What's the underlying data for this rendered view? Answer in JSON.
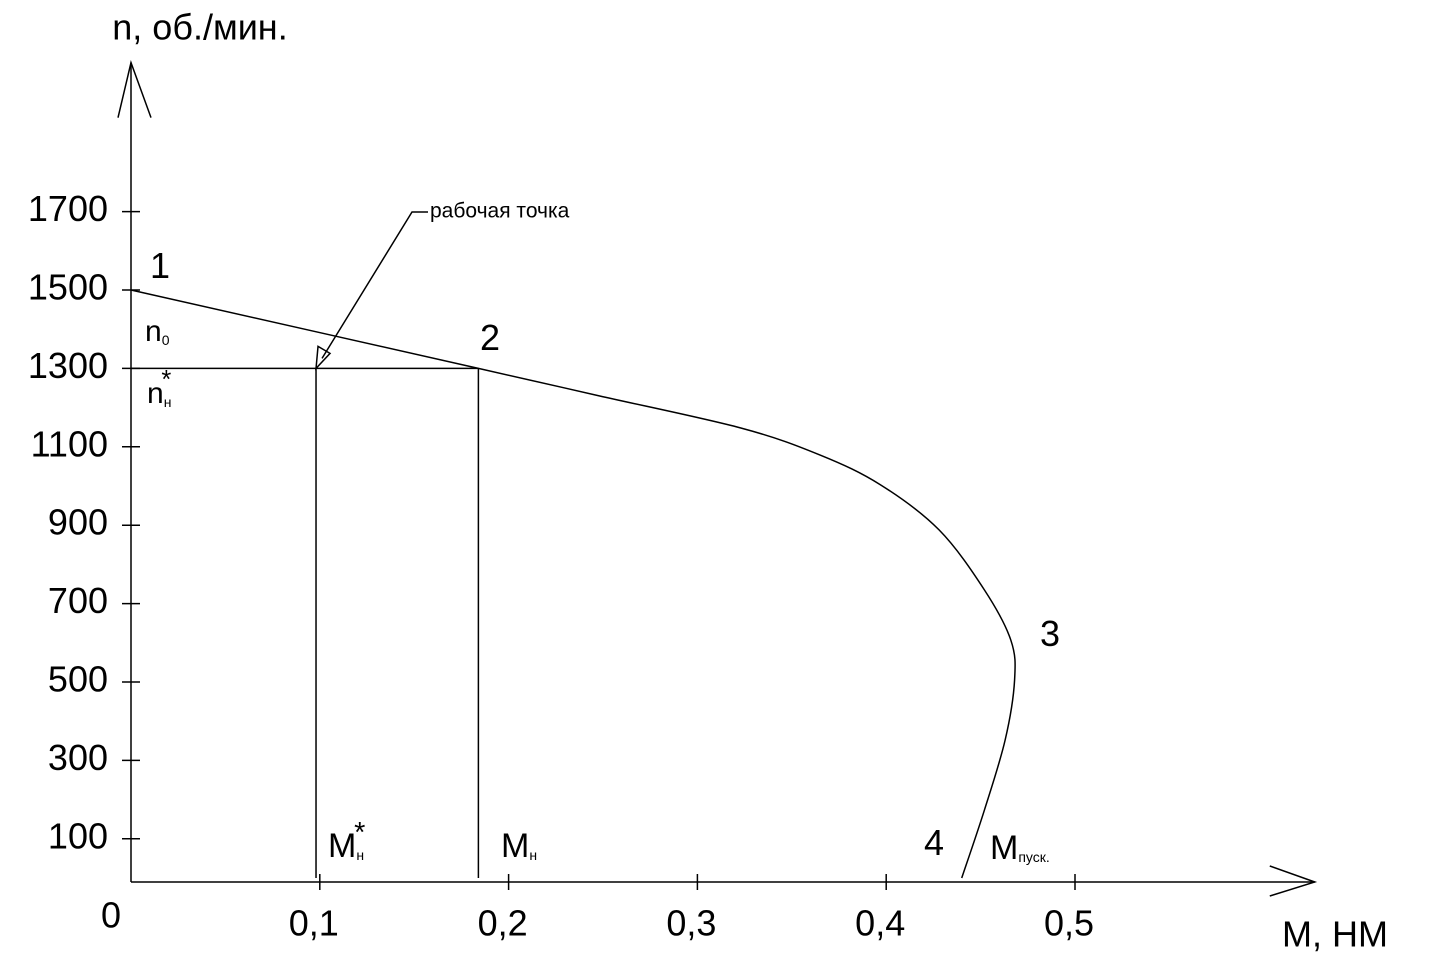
{
  "chart_data": {
    "type": "line",
    "y_label": "n, об./мин.",
    "x_label": "М, НМ",
    "xlim": [
      0,
      0.627
    ],
    "ylim": [
      0,
      2080
    ],
    "xticks": [
      {
        "value": 0,
        "label": "0"
      },
      {
        "value": 0.1,
        "label": "0,1"
      },
      {
        "value": 0.2,
        "label": "0,2"
      },
      {
        "value": 0.3,
        "label": "0,3"
      },
      {
        "value": 0.4,
        "label": "0,4"
      },
      {
        "value": 0.5,
        "label": "0,5"
      }
    ],
    "yticks": [
      100,
      300,
      500,
      700,
      900,
      1100,
      1300,
      1500,
      1700
    ],
    "series": [
      {
        "color": "#000000",
        "x": [
          0,
          0.184,
          0.248,
          0.323,
          0.365,
          0.397,
          0.428,
          0.452,
          0.466,
          0.468,
          0.463,
          0.452,
          0.44
        ],
        "values": [
          1500,
          1300,
          1230,
          1148,
          1079,
          1003,
          888,
          735,
          607,
          505,
          352,
          173,
          0
        ]
      }
    ],
    "guides": [
      {
        "x": [
          0,
          0.184
        ],
        "y": [
          1300,
          1300
        ]
      },
      {
        "x": [
          0.098,
          0.098
        ],
        "y": [
          0,
          1300
        ]
      },
      {
        "x": [
          0.184,
          0.184
        ],
        "y": [
          0,
          1300
        ]
      }
    ],
    "operating_point": {
      "label": "рабочая точка",
      "x": 0.098,
      "y": 1300
    },
    "annotations": [
      {
        "text": "1"
      },
      {
        "text": "2"
      },
      {
        "text": "3"
      },
      {
        "text": "4"
      },
      {
        "text": "n",
        "sub": "0"
      },
      {
        "text": "n",
        "sub": "н",
        "sup": "*"
      },
      {
        "text": "M",
        "sub": "н",
        "sup": "*"
      },
      {
        "text": "M",
        "sub": "н"
      },
      {
        "text": "M",
        "sub": "пуск."
      }
    ]
  }
}
